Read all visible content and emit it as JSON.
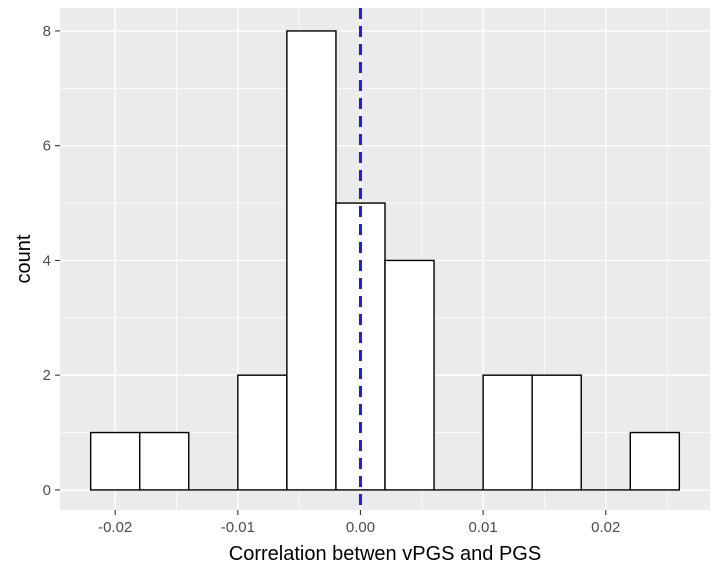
{
  "chart_data": {
    "type": "bar",
    "title": "",
    "xlabel": "Correlation betwen vPGS and PGS",
    "ylabel": "count",
    "xlim": [
      -0.0245,
      0.0285
    ],
    "ylim": [
      -0.35,
      8.4
    ],
    "bin_width": 0.004,
    "bins": [
      {
        "start": -0.022,
        "end": -0.018,
        "count": 1
      },
      {
        "start": -0.018,
        "end": -0.014,
        "count": 1
      },
      {
        "start": -0.014,
        "end": -0.01,
        "count": 0
      },
      {
        "start": -0.01,
        "end": -0.006,
        "count": 2
      },
      {
        "start": -0.006,
        "end": -0.002,
        "count": 8
      },
      {
        "start": -0.002,
        "end": 0.002,
        "count": 5
      },
      {
        "start": 0.002,
        "end": 0.006,
        "count": 4
      },
      {
        "start": 0.006,
        "end": 0.01,
        "count": 0
      },
      {
        "start": 0.01,
        "end": 0.014,
        "count": 2
      },
      {
        "start": 0.014,
        "end": 0.018,
        "count": 2
      },
      {
        "start": 0.018,
        "end": 0.022,
        "count": 0
      },
      {
        "start": 0.022,
        "end": 0.026,
        "count": 1
      }
    ],
    "x_ticks": [
      {
        "value": -0.02,
        "label": "-0.02"
      },
      {
        "value": -0.01,
        "label": "-0.01"
      },
      {
        "value": 0.0,
        "label": "0.00"
      },
      {
        "value": 0.01,
        "label": "0.01"
      },
      {
        "value": 0.02,
        "label": "0.02"
      }
    ],
    "y_ticks": [
      {
        "value": 0,
        "label": "0"
      },
      {
        "value": 2,
        "label": "2"
      },
      {
        "value": 4,
        "label": "4"
      },
      {
        "value": 6,
        "label": "6"
      },
      {
        "value": 8,
        "label": "8"
      }
    ],
    "reference_line": {
      "x": 0.0,
      "style": "dashed",
      "color": "#1a1aff"
    },
    "grid": true,
    "panel_background": "#ebebeb",
    "grid_color": "#ffffff",
    "bar_fill": "#ffffff",
    "bar_outline": "#000000",
    "legend": "none"
  }
}
